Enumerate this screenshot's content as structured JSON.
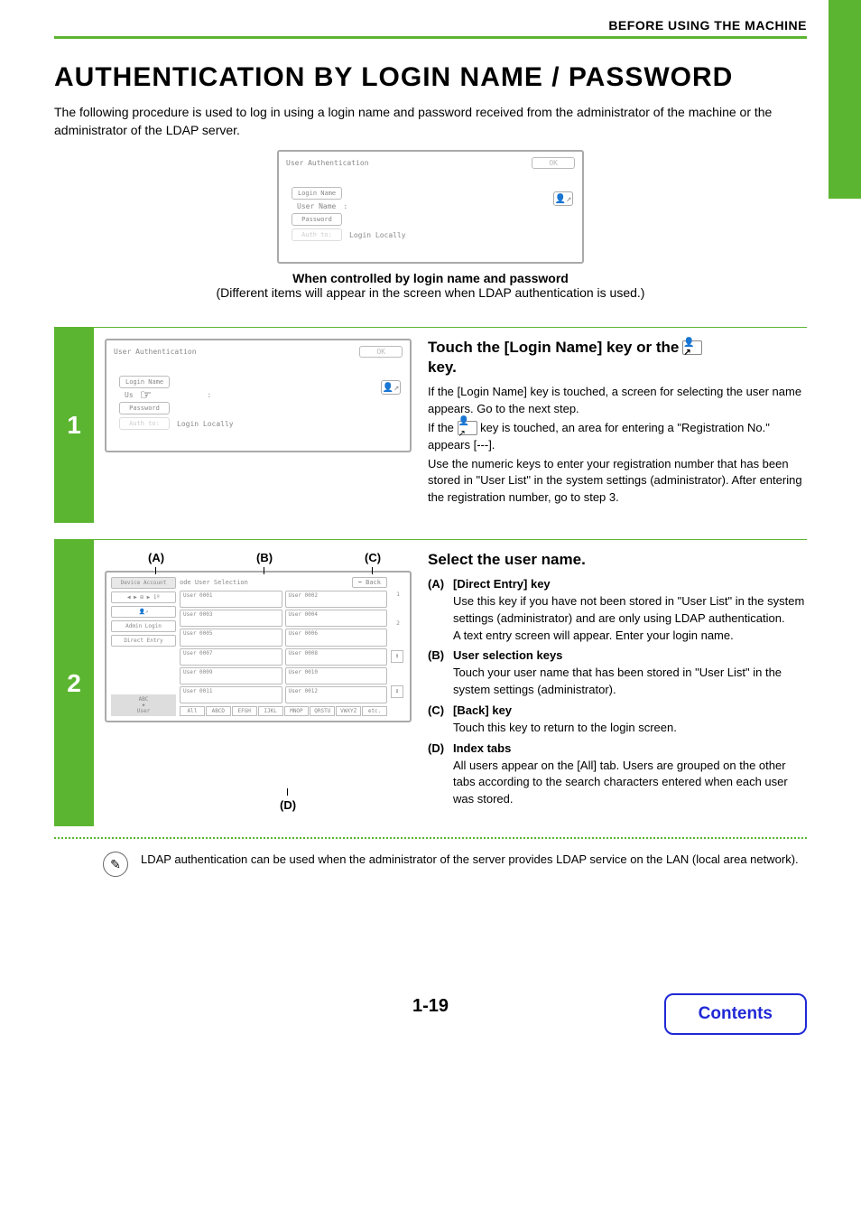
{
  "header": {
    "section": "BEFORE USING THE MACHINE"
  },
  "title": "AUTHENTICATION BY LOGIN NAME / PASSWORD",
  "intro": "The following procedure is used to log in using a login name and password received from the administrator of the machine or the administrator of the LDAP server.",
  "caption": {
    "bold": "When controlled by login name and password",
    "sub": "(Different items will appear in the screen when LDAP authentication is used.)"
  },
  "authPanel": {
    "title": "User Authentication",
    "ok": "OK",
    "loginName": "Login Name",
    "userName": "User Name",
    "colon": ":",
    "password": "Password",
    "authTo": "Auth to:",
    "loginLocally": "Login Locally"
  },
  "step1": {
    "num": "1",
    "heading_a": "Touch the [Login Name] key or the",
    "heading_b": "key.",
    "p1": "If the [Login Name] key is touched, a screen for selecting the user name appears. Go to the next step.",
    "p2a": "If the ",
    "p2b": " key is touched, an area for entering a \"Registration No.\" appears [---].",
    "p3": "Use the numeric keys to enter your registration number that has been stored in \"User List\" in the system settings (administrator). After entering the registration number, go to step 3."
  },
  "step2": {
    "num": "2",
    "heading": "Select the user name.",
    "labels": {
      "A": "(A)",
      "B": "(B)",
      "C": "(C)",
      "D": "(D)"
    },
    "usel": {
      "sideTitle": "Device Account",
      "sideIconRow": "◀ ▶ ⊞ ▶ 1º",
      "adminLogin": "Admin Login",
      "directEntry": "Direct Entry",
      "abc": "ABC",
      "userTab": "User",
      "topTitle": "ode User Selection",
      "back": "⬅ Back",
      "users": [
        "User 0001",
        "User 0002",
        "User 0003",
        "User 0004",
        "User 0005",
        "User 0006",
        "User 0007",
        "User 0008",
        "User 0009",
        "User 0010",
        "User 0011",
        "User 0012"
      ],
      "tabs": [
        "All",
        "ABCD",
        "EFGH",
        "IJKL",
        "MNOP",
        "QRSTU",
        "VWXYZ",
        "etc."
      ],
      "page1": "1",
      "page2": "2",
      "up": "⬆",
      "down": "⬇"
    },
    "items": {
      "A": {
        "title": "[Direct Entry] key",
        "body": "Use this key if you have not been stored in \"User List\" in the system settings (administrator) and are only using LDAP authentication.\nA text entry screen will appear. Enter your login name."
      },
      "B": {
        "title": "User selection keys",
        "body": "Touch your user name that has been stored in \"User List\" in the system settings (administrator)."
      },
      "C": {
        "title": "[Back] key",
        "body": "Touch this key to return to the login screen."
      },
      "D": {
        "title": "Index tabs",
        "body": "All users appear on the [All] tab. Users are grouped on the other tabs according to the search characters entered when each user was stored."
      }
    },
    "note": "LDAP authentication can be used when the administrator of the server provides LDAP service on the LAN (local area network)."
  },
  "pageNum": "1-19",
  "contents": "Contents",
  "colors": {
    "accent": "#5cb531",
    "link": "#2028d6"
  }
}
